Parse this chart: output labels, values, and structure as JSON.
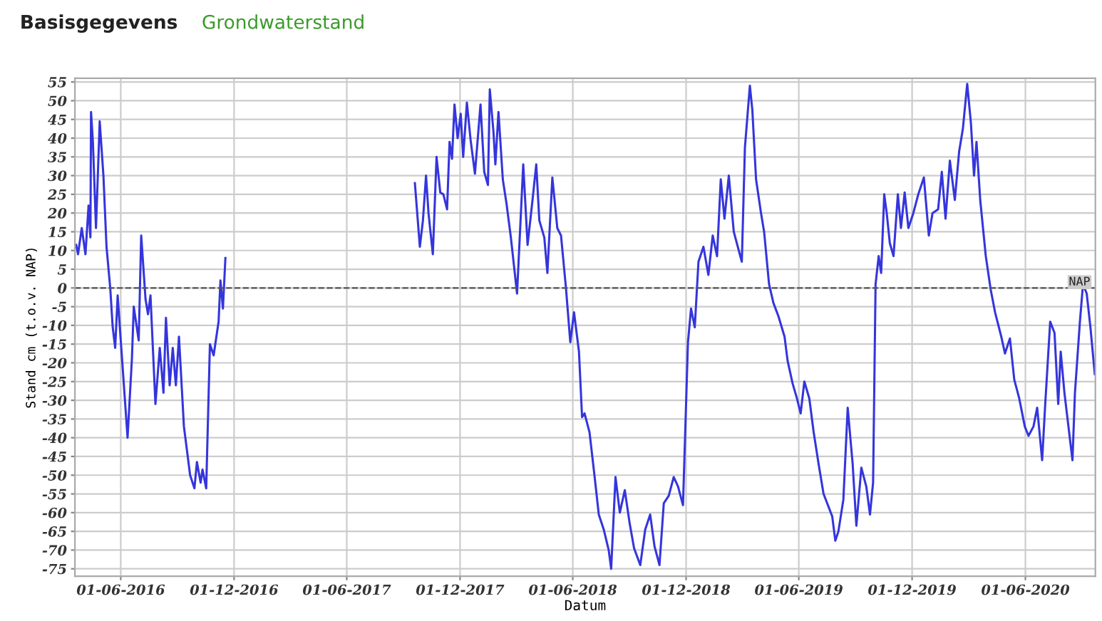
{
  "chart_data": {
    "type": "line",
    "xlabel": "Datum",
    "ylabel": "Stand cm (t.o.v. NAP)",
    "annotations": [
      "Basisgegevens",
      "Grondwaterstand"
    ],
    "xlim": [
      "2016-03-19",
      "2020-09-22"
    ],
    "xticks": [
      {
        "value": "2016-06-01",
        "label": "01-06-2016"
      },
      {
        "value": "2016-12-01",
        "label": "01-12-2016"
      },
      {
        "value": "2017-06-01",
        "label": "01-06-2017"
      },
      {
        "value": "2017-12-01",
        "label": "01-12-2017"
      },
      {
        "value": "2018-06-01",
        "label": "01-06-2018"
      },
      {
        "value": "2018-12-01",
        "label": "01-12-2018"
      },
      {
        "value": "2019-06-01",
        "label": "01-06-2019"
      },
      {
        "value": "2019-12-01",
        "label": "01-12-2019"
      },
      {
        "value": "2020-06-01",
        "label": "01-06-2020"
      }
    ],
    "ylim": [
      -77,
      56
    ],
    "yticks": [
      -75,
      -70,
      -65,
      -60,
      -55,
      -50,
      -45,
      -40,
      -35,
      -30,
      -25,
      -20,
      -15,
      -10,
      -5,
      0,
      5,
      10,
      15,
      20,
      25,
      30,
      35,
      40,
      45,
      50,
      55
    ],
    "grid": true,
    "marker": "none",
    "line_style": "solid",
    "ref_lines": [
      {
        "axis": "y",
        "value": 0,
        "label": "NAP",
        "color": "#555555",
        "line_style": "dashed"
      }
    ],
    "x": [
      "2016-03-21",
      "2016-03-24",
      "2016-03-30",
      "2016-04-05",
      "2016-04-10",
      "2016-04-13",
      "2016-04-14",
      "2016-04-17",
      "2016-04-22",
      "2016-04-28",
      "2016-05-04",
      "2016-05-09",
      "2016-05-15",
      "2016-05-19",
      "2016-05-23",
      "2016-05-27",
      "2016-06-01",
      "2016-06-12",
      "2016-06-19",
      "2016-06-22",
      "2016-06-30",
      "2016-07-04",
      "2016-07-11",
      "2016-07-15",
      "2016-07-19",
      "2016-07-27",
      "2016-08-03",
      "2016-08-09",
      "2016-08-13",
      "2016-08-19",
      "2016-08-24",
      "2016-08-29",
      "2016-09-03",
      "2016-09-11",
      "2016-09-21",
      "2016-09-28",
      "2016-10-02",
      "2016-10-08",
      "2016-10-11",
      "2016-10-17",
      "2016-10-23",
      "2016-10-29",
      "2016-11-06",
      "2016-11-09",
      "2016-11-13",
      "2016-11-17",
      "2017-03-01",
      "2017-09-19",
      "2017-09-27",
      "2017-10-02",
      "2017-10-07",
      "2017-10-11",
      "2017-10-18",
      "2017-10-24",
      "2017-10-30",
      "2017-11-04",
      "2017-11-10",
      "2017-11-14",
      "2017-11-18",
      "2017-11-22",
      "2017-11-27",
      "2017-12-02",
      "2017-12-06",
      "2017-12-12",
      "2017-12-18",
      "2017-12-25",
      "2018-01-03",
      "2018-01-09",
      "2018-01-15",
      "2018-01-18",
      "2018-01-24",
      "2018-01-27",
      "2018-02-01",
      "2018-02-08",
      "2018-02-14",
      "2018-02-21",
      "2018-03-03",
      "2018-03-13",
      "2018-03-20",
      "2018-03-28",
      "2018-04-03",
      "2018-04-08",
      "2018-04-16",
      "2018-04-21",
      "2018-04-29",
      "2018-05-07",
      "2018-05-13",
      "2018-05-21",
      "2018-05-28",
      "2018-06-03",
      "2018-06-11",
      "2018-06-16",
      "2018-06-20",
      "2018-06-28",
      "2018-07-06",
      "2018-07-13",
      "2018-07-21",
      "2018-07-29",
      "2018-08-02",
      "2018-08-09",
      "2018-08-16",
      "2018-08-24",
      "2018-09-01",
      "2018-09-08",
      "2018-09-18",
      "2018-09-26",
      "2018-10-04",
      "2018-10-11",
      "2018-10-19",
      "2018-10-26",
      "2018-11-03",
      "2018-11-11",
      "2018-11-18",
      "2018-11-26",
      "2018-12-04",
      "2018-12-09",
      "2018-12-15",
      "2018-12-21",
      "2018-12-29",
      "2019-01-06",
      "2019-01-13",
      "2019-01-20",
      "2019-01-26",
      "2019-02-01",
      "2019-02-08",
      "2019-02-16",
      "2019-03-01",
      "2019-03-06",
      "2019-03-14",
      "2019-03-18",
      "2019-03-24",
      "2019-04-01",
      "2019-04-06",
      "2019-04-14",
      "2019-04-21",
      "2019-04-29",
      "2019-05-09",
      "2019-05-14",
      "2019-05-22",
      "2019-05-29",
      "2019-06-04",
      "2019-06-10",
      "2019-06-18",
      "2019-06-25",
      "2019-07-03",
      "2019-07-11",
      "2019-07-18",
      "2019-07-25",
      "2019-07-30",
      "2019-08-04",
      "2019-08-12",
      "2019-08-19",
      "2019-08-27",
      "2019-09-02",
      "2019-09-10",
      "2019-09-18",
      "2019-09-24",
      "2019-09-29",
      "2019-10-03",
      "2019-10-08",
      "2019-10-12",
      "2019-10-17",
      "2019-10-21",
      "2019-10-26",
      "2019-11-01",
      "2019-11-08",
      "2019-11-13",
      "2019-11-19",
      "2019-11-25",
      "2019-12-03",
      "2019-12-11",
      "2019-12-20",
      "2019-12-28",
      "2020-01-03",
      "2020-01-12",
      "2020-01-18",
      "2020-01-24",
      "2020-01-31",
      "2020-02-08",
      "2020-02-15",
      "2020-02-21",
      "2020-02-28",
      "2020-03-05",
      "2020-03-10",
      "2020-03-14",
      "2020-03-20",
      "2020-03-29",
      "2020-04-06",
      "2020-04-13",
      "2020-04-23",
      "2020-04-29",
      "2020-05-07",
      "2020-05-14",
      "2020-05-22",
      "2020-05-31",
      "2020-06-06",
      "2020-06-14",
      "2020-06-20",
      "2020-06-28",
      "2020-07-03",
      "2020-07-11",
      "2020-07-18",
      "2020-07-24",
      "2020-07-28",
      "2020-08-03",
      "2020-08-16",
      "2020-08-20",
      "2020-08-28",
      "2020-09-02",
      "2020-09-08",
      "2020-09-14",
      "2020-09-21"
    ],
    "series": [
      {
        "color": "#3535dc",
        "values": [
          11.5,
          9,
          16,
          9,
          22,
          13.5,
          47,
          39,
          16,
          44.5,
          30,
          11,
          0,
          -10.5,
          -16,
          -2,
          -14,
          -40,
          -19,
          -5,
          -14,
          14,
          -3,
          -7,
          -2,
          -31,
          -16,
          -28,
          -8,
          -26,
          -16,
          -26,
          -13,
          -37,
          -50,
          -53.5,
          -46.5,
          -52,
          -48.5,
          -53.5,
          -15,
          -18,
          -9,
          2,
          -5.5,
          8,
          null,
          28,
          11,
          18,
          30,
          20,
          9,
          35,
          25.5,
          25,
          21,
          39,
          34.5,
          49,
          40,
          46.5,
          35,
          49.5,
          39.5,
          30.5,
          49,
          31,
          27.5,
          53,
          41.5,
          33,
          47,
          29,
          22.5,
          13.5,
          -1.5,
          33,
          11.5,
          23.5,
          33,
          18,
          13.5,
          4,
          29.5,
          16,
          14,
          0,
          -14.5,
          -6.5,
          -17,
          -34.5,
          -33.5,
          -38.5,
          -50,
          -60.5,
          -64.5,
          -70,
          -75,
          -50.5,
          -60,
          -54,
          -63,
          -69.5,
          -74,
          -64.5,
          -60.5,
          -69,
          -74,
          -57.5,
          -55.5,
          -50.5,
          -53,
          -58,
          -14.5,
          -5.5,
          -10.5,
          7,
          11,
          3.5,
          14,
          8.5,
          29,
          18.5,
          30,
          15,
          7,
          37.5,
          54,
          47.5,
          29,
          20,
          15,
          1,
          -4,
          -7.5,
          -13,
          -19.5,
          -25.5,
          -29.5,
          -33.5,
          -25,
          -29.5,
          -38.5,
          -47,
          -55,
          -58,
          -61,
          -67.5,
          -65,
          -56.5,
          -32,
          -47,
          -63.5,
          -48,
          -53,
          -60.5,
          -52,
          1,
          8.5,
          4,
          25,
          20,
          12,
          8.5,
          25,
          16,
          25.5,
          16,
          20,
          25,
          29.5,
          14,
          20,
          21,
          31,
          18.5,
          34,
          23.5,
          36.5,
          42.5,
          54.5,
          44,
          30,
          39,
          23.5,
          8.5,
          -0.5,
          -6.5,
          -13,
          -17.5,
          -13.5,
          -24.5,
          -29.5,
          -37,
          -39.5,
          -37,
          -32,
          -46,
          -31,
          -9,
          -12,
          -31,
          -17,
          -28,
          -46,
          -28,
          -9,
          1,
          -1.5,
          -10.5,
          -23
        ]
      }
    ]
  }
}
